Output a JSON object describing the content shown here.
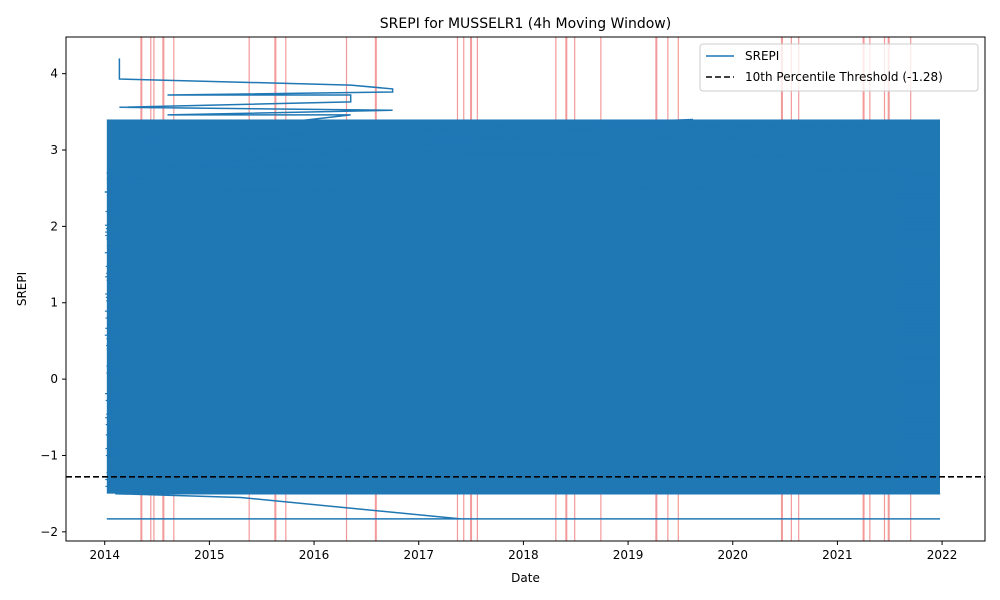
{
  "chart_data": {
    "type": "line",
    "title": "SREPI for MUSSELR1 (4h Moving Window)",
    "xlabel": "Date",
    "ylabel": "SREPI",
    "xlim": [
      2013.63,
      2022.41
    ],
    "ylim": [
      -2.12,
      4.48
    ],
    "x_ticks": [
      2014,
      2015,
      2016,
      2017,
      2018,
      2019,
      2020,
      2021,
      2022
    ],
    "x_tick_labels": [
      "2014",
      "2015",
      "2016",
      "2017",
      "2018",
      "2019",
      "2020",
      "2021",
      "2022"
    ],
    "y_ticks": [
      -2,
      -1,
      0,
      1,
      2,
      3,
      4
    ],
    "y_tick_labels": [
      "−2",
      "−1",
      "0",
      "1",
      "2",
      "3",
      "4"
    ],
    "threshold": {
      "value": -1.28,
      "label": "10th Percentile Threshold (-1.28)",
      "color": "#000000",
      "style": "dashed"
    },
    "series": [
      {
        "name": "SREPI",
        "color": "#1f77b4",
        "x_range": [
          2014.02,
          2021.98
        ],
        "y_fill_range": [
          -1.5,
          3.4
        ],
        "points": [
          [
            2014.14,
            4.2
          ],
          [
            2014.14,
            3.93
          ],
          [
            2016.35,
            3.85
          ],
          [
            2016.75,
            3.8
          ],
          [
            2016.75,
            3.76
          ],
          [
            2014.6,
            3.72
          ],
          [
            2016.35,
            3.72
          ],
          [
            2016.35,
            3.63
          ],
          [
            2014.14,
            3.56
          ],
          [
            2016.75,
            3.52
          ],
          [
            2014.6,
            3.46
          ],
          [
            2016.35,
            3.46
          ],
          [
            2014.14,
            3.11
          ],
          [
            2019.62,
            3.4
          ],
          [
            2014.02,
            2.7
          ],
          [
            2021.98,
            -1.5
          ],
          [
            2014.1,
            -1.5
          ],
          [
            2015.3,
            -1.55
          ],
          [
            2017.4,
            -1.83
          ],
          [
            2014.02,
            -1.83
          ],
          [
            2021.98,
            -1.83
          ]
        ]
      }
    ],
    "highlight_dates": [
      2014.35,
      2014.44,
      2014.47,
      2014.56,
      2014.66,
      2015.38,
      2015.63,
      2015.73,
      2016.31,
      2016.59,
      2017.37,
      2017.43,
      2017.5,
      2017.56,
      2018.31,
      2018.41,
      2018.49,
      2018.74,
      2019.27,
      2019.38,
      2019.48,
      2020.47,
      2020.56,
      2020.63,
      2021.25,
      2021.31,
      2021.45,
      2021.49,
      2021.7
    ],
    "highlight_color": "#f08080",
    "legend": {
      "position": "top-right",
      "entries": [
        "SREPI",
        "10th Percentile Threshold (-1.28)"
      ]
    },
    "grid": false
  }
}
